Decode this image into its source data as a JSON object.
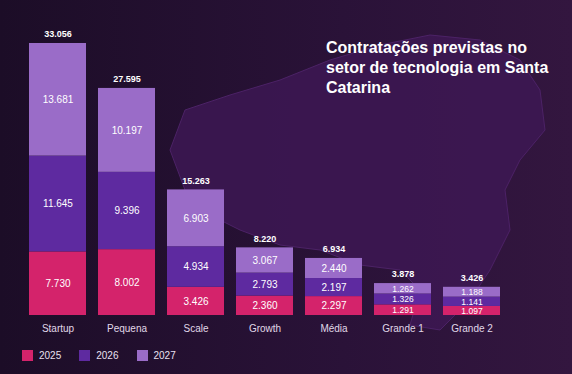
{
  "chart_data": {
    "type": "bar",
    "stacked": true,
    "title": "Contratações previstas no setor de tecnologia em Santa Catarina",
    "categories": [
      "Startup",
      "Pequena",
      "Scale",
      "Growth",
      "Média",
      "Grande 1",
      "Grande 2"
    ],
    "series": [
      {
        "name": "2025",
        "color": "#d4236b",
        "values": [
          7730,
          8002,
          3426,
          2360,
          2297,
          1291,
          1097
        ],
        "value_labels": [
          "7.730",
          "8.002",
          "3.426",
          "2.360",
          "2.297",
          "1.291",
          "1.097"
        ]
      },
      {
        "name": "2026",
        "color": "#5e2aa0",
        "values": [
          11645,
          9396,
          4934,
          2793,
          2197,
          1326,
          1141
        ],
        "value_labels": [
          "11.645",
          "9.396",
          "4.934",
          "2.793",
          "2.197",
          "1.326",
          "1.141"
        ]
      },
      {
        "name": "2027",
        "color": "#9a6cc8",
        "values": [
          13681,
          10197,
          6903,
          3067,
          2440,
          1262,
          1188
        ],
        "value_labels": [
          "13.681",
          "10.197",
          "6.903",
          "3.067",
          "2.440",
          "1.262",
          "1.188"
        ]
      }
    ],
    "totals": [
      33056,
      27595,
      15263,
      8220,
      6934,
      3878,
      3426
    ],
    "total_labels": [
      "33.056",
      "27.595",
      "15.263",
      "8.220",
      "6.934",
      "3.878",
      "3.426"
    ],
    "data_labels": true,
    "legend": "bottom-left",
    "tick_labels": "x"
  }
}
